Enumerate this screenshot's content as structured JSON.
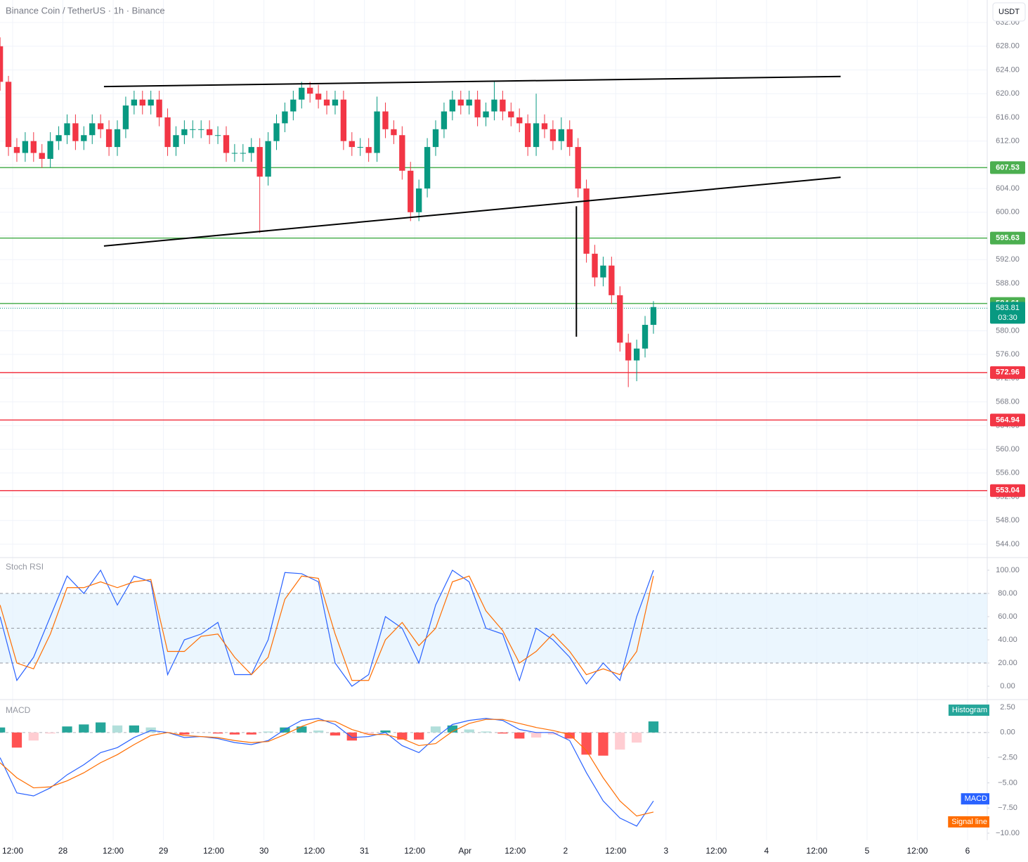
{
  "chart_data": [
    {
      "type": "candlestick",
      "title": "Binance Coin / TetherUS · 1h · Binance",
      "currency": "USDT",
      "x": [
        9,
        11,
        13,
        15,
        17,
        19,
        21,
        23,
        25,
        27,
        29,
        31,
        33,
        35,
        37,
        39,
        41,
        43,
        45,
        47,
        49,
        51,
        53,
        55,
        57,
        59,
        61,
        63,
        65,
        67,
        69,
        71,
        73,
        75,
        77,
        79,
        81,
        83,
        85,
        87,
        89,
        91,
        93,
        95,
        97,
        99,
        101,
        103,
        105,
        107,
        109,
        111,
        113,
        115,
        117,
        119,
        121,
        123,
        125,
        127,
        129,
        131,
        133,
        135,
        137,
        139,
        141,
        143,
        145,
        147,
        149,
        151,
        153,
        155,
        157,
        159,
        161,
        163,
        165
      ],
      "open": [
        628,
        622,
        611,
        610,
        612,
        610,
        609,
        612,
        613,
        615,
        612,
        613,
        615,
        614,
        611,
        614,
        618,
        619,
        618,
        619,
        616,
        611,
        613,
        614,
        614,
        614,
        613,
        613,
        610,
        610,
        610,
        611,
        606,
        612,
        615,
        617,
        619,
        621,
        620,
        619,
        618,
        619,
        612,
        611,
        611,
        610,
        617,
        614,
        613,
        607,
        600,
        604,
        611,
        614,
        617,
        619,
        618,
        619,
        616,
        617,
        619,
        617,
        616,
        615,
        611,
        615,
        614,
        612,
        614,
        611,
        604,
        593,
        589,
        591,
        586,
        578,
        575,
        577,
        581
      ],
      "high": [
        629.5,
        623,
        612.5,
        613.5,
        613.5,
        611.5,
        613.5,
        614.5,
        616.5,
        616.5,
        614.5,
        616.5,
        616.5,
        615.5,
        615.5,
        619.5,
        620.5,
        620.5,
        620.5,
        620.5,
        617.5,
        614.5,
        615.5,
        615.5,
        615.5,
        615.5,
        614.5,
        614.5,
        611.5,
        611.5,
        612.5,
        612.5,
        613.5,
        616.5,
        618.5,
        620.5,
        622,
        622,
        621.5,
        620.5,
        620.5,
        620.5,
        613.5,
        612.5,
        612.5,
        619.5,
        618.5,
        615.5,
        614.5,
        608.5,
        605.5,
        612.5,
        615.5,
        618.5,
        620.5,
        620.5,
        620.5,
        620.5,
        618.5,
        622,
        620.5,
        618.5,
        617.5,
        616.5,
        620,
        616.5,
        615.5,
        616,
        615.5,
        612.5,
        605.5,
        594.5,
        592.5,
        592.5,
        587.5,
        579.5,
        578.5,
        582.5,
        585
      ],
      "low": [
        620.5,
        609.5,
        608.5,
        608.5,
        608.5,
        607.5,
        607.5,
        610.5,
        611.5,
        610.5,
        610.5,
        611.5,
        612.5,
        609.5,
        609.5,
        612.5,
        616.5,
        616.5,
        616.5,
        614.5,
        609.5,
        609.5,
        611.5,
        612.5,
        612.5,
        611.5,
        611.5,
        608.5,
        608.5,
        608.5,
        608.5,
        596.5,
        604.5,
        610.5,
        613.5,
        615.5,
        617.5,
        618.5,
        617.5,
        616.5,
        616.5,
        610.5,
        609.5,
        609.5,
        608.5,
        608.5,
        612.5,
        611.5,
        605.5,
        598.5,
        598.5,
        602.5,
        609.5,
        612.5,
        615.5,
        616.5,
        616.5,
        614.5,
        614.5,
        615.5,
        615.5,
        614.5,
        613.5,
        609.5,
        609.5,
        612.5,
        610.5,
        610.5,
        609.5,
        602.5,
        591.5,
        587.5,
        587.5,
        584.5,
        576.5,
        570.5,
        571.5,
        575.5,
        579.5
      ],
      "close": [
        622,
        611,
        610,
        612,
        610,
        609,
        612,
        613,
        615,
        612,
        613,
        615,
        614,
        611,
        614,
        618,
        619,
        618,
        619,
        616,
        611,
        613,
        614,
        614,
        614,
        613,
        613,
        610,
        610,
        610,
        611,
        606,
        612,
        615,
        617,
        619,
        621,
        620,
        619,
        618,
        619,
        612,
        611,
        611,
        610,
        617,
        614,
        613,
        607,
        600,
        604,
        611,
        614,
        617,
        619,
        618,
        619,
        616,
        617,
        619,
        617,
        616,
        615,
        611,
        615,
        614,
        612,
        614,
        611,
        604,
        593,
        589,
        591,
        586,
        578,
        575,
        577,
        581,
        584
      ],
      "up_color": "#089981",
      "down_color": "#f23645",
      "xlim": [
        8.98,
        244.7
      ],
      "xticks": [
        {
          "value": 12,
          "label": "12:00"
        },
        {
          "value": 24,
          "label": "28"
        },
        {
          "value": 36,
          "label": "12:00"
        },
        {
          "value": 48,
          "label": "29"
        },
        {
          "value": 60,
          "label": "12:00"
        },
        {
          "value": 72,
          "label": "30"
        },
        {
          "value": 84,
          "label": "12:00"
        },
        {
          "value": 96,
          "label": "31"
        },
        {
          "value": 108,
          "label": "12:00"
        },
        {
          "value": 120,
          "label": "Apr"
        },
        {
          "value": 132,
          "label": "12:00"
        },
        {
          "value": 144,
          "label": "2"
        },
        {
          "value": 156,
          "label": "12:00"
        },
        {
          "value": 168,
          "label": "3"
        },
        {
          "value": 180,
          "label": "12:00"
        },
        {
          "value": 192,
          "label": "4"
        },
        {
          "value": 204,
          "label": "12:00"
        },
        {
          "value": 216,
          "label": "5"
        },
        {
          "value": 228,
          "label": "12:00"
        },
        {
          "value": 240,
          "label": "6"
        }
      ],
      "ylim": [
        542.1,
        635.8
      ],
      "yticks": [
        {
          "value": 544,
          "label": "544.00"
        },
        {
          "value": 548,
          "label": "548.00"
        },
        {
          "value": 552,
          "label": "552.00"
        },
        {
          "value": 556,
          "label": "556.00"
        },
        {
          "value": 560,
          "label": "560.00"
        },
        {
          "value": 564,
          "label": "564.00"
        },
        {
          "value": 568,
          "label": "568.00"
        },
        {
          "value": 572,
          "label": "572.00"
        },
        {
          "value": 576,
          "label": "576.00"
        },
        {
          "value": 580,
          "label": "580.00"
        },
        {
          "value": 584,
          "label": "584.00"
        },
        {
          "value": 588,
          "label": "588.00"
        },
        {
          "value": 592,
          "label": "592.00"
        },
        {
          "value": 596,
          "label": "596.00"
        },
        {
          "value": 600,
          "label": "600.00"
        },
        {
          "value": 604,
          "label": "604.00"
        },
        {
          "value": 608,
          "label": "608.00"
        },
        {
          "value": 612,
          "label": "612.00"
        },
        {
          "value": 616,
          "label": "616.00"
        },
        {
          "value": 620,
          "label": "620.00"
        },
        {
          "value": 624,
          "label": "624.00"
        },
        {
          "value": 628,
          "label": "628.00"
        },
        {
          "value": 632,
          "label": "632.00"
        }
      ],
      "grid": true,
      "levels": [
        {
          "value": 607.53,
          "color": "#4caf50"
        },
        {
          "value": 595.63,
          "color": "#4caf50"
        },
        {
          "value": 584.61,
          "color": "#4caf50"
        },
        {
          "value": 572.96,
          "color": "#f23645"
        },
        {
          "value": 564.94,
          "color": "#f23645"
        },
        {
          "value": 553.04,
          "color": "#f23645"
        }
      ],
      "last_price": 583.81,
      "countdown": "03:30",
      "last_color": "#089981",
      "trendlines": [
        {
          "x": [
            33.8,
            209.7
          ],
          "y": [
            621.2,
            622.9
          ]
        },
        {
          "x": [
            33.8,
            209.7
          ],
          "y": [
            594.3,
            605.9
          ]
        },
        {
          "x": [
            146.6,
            146.6
          ],
          "y": [
            601,
            579
          ]
        }
      ]
    },
    {
      "type": "line",
      "title": "Stoch RSI",
      "x": [
        9,
        13,
        17,
        21,
        25,
        29,
        33,
        37,
        41,
        45,
        49,
        53,
        57,
        61,
        65,
        69,
        73,
        77,
        81,
        85,
        89,
        93,
        97,
        101,
        105,
        109,
        113,
        117,
        121,
        125,
        129,
        133,
        137,
        141,
        145,
        149,
        153,
        157,
        161,
        165
      ],
      "series": [
        {
          "color": "#2962ff",
          "values": [
            60,
            5,
            25,
            60,
            95,
            80,
            100,
            70,
            95,
            90,
            10,
            40,
            45,
            55,
            10,
            10,
            40,
            98,
            97,
            90,
            20,
            0,
            10,
            60,
            50,
            20,
            70,
            100,
            90,
            50,
            45,
            5,
            50,
            40,
            25,
            2,
            20,
            5,
            60,
            100
          ]
        },
        {
          "color": "#ff6d00",
          "values": [
            70,
            20,
            15,
            45,
            85,
            85,
            90,
            85,
            90,
            92,
            30,
            30,
            43,
            45,
            25,
            10,
            25,
            75,
            95,
            93,
            45,
            5,
            5,
            40,
            55,
            35,
            50,
            90,
            95,
            65,
            48,
            20,
            30,
            45,
            30,
            10,
            15,
            10,
            30,
            95
          ]
        }
      ],
      "ylim": [
        -11.5,
        109.7
      ],
      "yticks": [
        {
          "value": 0,
          "label": "0.00"
        },
        {
          "value": 20,
          "label": "20.00"
        },
        {
          "value": 40,
          "label": "40.00"
        },
        {
          "value": 60,
          "label": "60.00"
        },
        {
          "value": 80,
          "label": "80.00"
        },
        {
          "value": 100,
          "label": "100.00"
        }
      ],
      "band": [
        20,
        80
      ],
      "midline": 50,
      "band_color": "#e3f2fd"
    },
    {
      "type": "macd",
      "title": "MACD",
      "x": [
        9,
        13,
        17,
        21,
        25,
        29,
        33,
        37,
        41,
        45,
        49,
        53,
        57,
        61,
        65,
        69,
        73,
        77,
        81,
        85,
        89,
        93,
        97,
        101,
        105,
        109,
        113,
        117,
        121,
        125,
        129,
        133,
        137,
        141,
        145,
        149,
        153,
        157,
        161,
        165
      ],
      "histogram": {
        "name": "Histogram",
        "color": "#26a69a",
        "values": [
          0.5,
          -1.5,
          -0.8,
          -0.1,
          0.6,
          0.8,
          1,
          0.7,
          0.7,
          0.5,
          0,
          -0.2,
          0,
          -0.1,
          -0.2,
          -0.2,
          0.1,
          0.5,
          0.6,
          0.2,
          -0.3,
          -0.8,
          -0.2,
          0.2,
          -0.7,
          -0.7,
          0.6,
          0.7,
          0.3,
          0.1,
          -0.1,
          -0.6,
          -0.5,
          -0.2,
          -0.6,
          -2.2,
          -2.3,
          -1.7,
          -1.0,
          1.1
        ]
      },
      "series": [
        {
          "name": "MACD",
          "color": "#2962ff",
          "values": [
            -2.5,
            -6,
            -6.3,
            -5.5,
            -4.2,
            -3.2,
            -2,
            -1.5,
            -0.5,
            0.2,
            0,
            -0.5,
            -0.4,
            -0.6,
            -1,
            -1.2,
            -0.8,
            0.3,
            1.2,
            1.4,
            0.8,
            -0.5,
            -0.4,
            0,
            -1.3,
            -2,
            -0.5,
            0.8,
            1.2,
            1.4,
            1.2,
            0.3,
            0,
            0,
            -0.8,
            -4,
            -6.8,
            -8.5,
            -9.3,
            -6.8
          ]
        },
        {
          "name": "Signal line",
          "color": "#ff6d00",
          "values": [
            -3,
            -4.5,
            -5.5,
            -5.4,
            -4.8,
            -4,
            -3,
            -2.2,
            -1.2,
            -0.3,
            0,
            -0.3,
            -0.4,
            -0.5,
            -0.8,
            -1,
            -0.9,
            -0.2,
            0.6,
            1.2,
            1.1,
            0.3,
            -0.2,
            -0.2,
            -0.6,
            -1.3,
            -1.1,
            0.1,
            0.9,
            1.3,
            1.3,
            0.9,
            0.5,
            0.2,
            -0.2,
            -1.8,
            -4.5,
            -6.8,
            -8.3,
            -7.9
          ]
        }
      ],
      "ylim": [
        -10.7,
        3.27
      ],
      "yticks": [
        {
          "value": 2.5,
          "label": "2.50"
        },
        {
          "value": 0,
          "label": "0.00"
        },
        {
          "value": -2.5,
          "label": "−2.50"
        },
        {
          "value": -5,
          "label": "−5.00"
        },
        {
          "value": -7.5,
          "label": "−7.50"
        },
        {
          "value": -10,
          "label": "−10.00"
        }
      ]
    }
  ]
}
